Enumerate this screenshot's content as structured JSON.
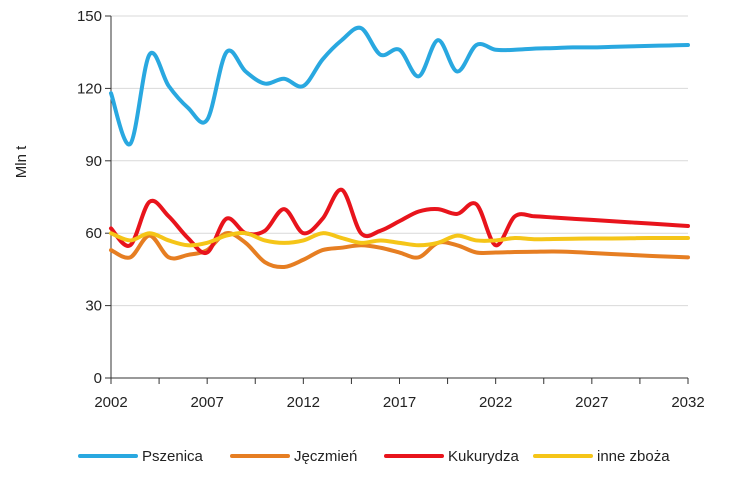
{
  "chart_data": {
    "type": "line",
    "ylabel": "Mln t",
    "xlabel": "",
    "title": "",
    "xlim": [
      2002,
      2032
    ],
    "ylim": [
      0,
      150
    ],
    "x_ticks": [
      2002,
      2007,
      2012,
      2017,
      2022,
      2027,
      2032
    ],
    "y_ticks": [
      0,
      30,
      60,
      90,
      120,
      150
    ],
    "grid": "horizontal",
    "legend_position": "bottom",
    "x": [
      2002,
      2003,
      2004,
      2005,
      2006,
      2007,
      2008,
      2009,
      2010,
      2011,
      2012,
      2013,
      2014,
      2015,
      2016,
      2017,
      2018,
      2019,
      2020,
      2021,
      2022,
      2023,
      2024,
      2025,
      2026,
      2027,
      2028,
      2029,
      2030,
      2031,
      2032
    ],
    "series": [
      {
        "name": "Pszenica",
        "color": "#29a8e0",
        "values": [
          118,
          97,
          134,
          121,
          112,
          107,
          135,
          127,
          122,
          124,
          121,
          132,
          140,
          145,
          134,
          136,
          125,
          140,
          127,
          138,
          136,
          136,
          136.5,
          136.7,
          137,
          137,
          137.2,
          137.4,
          137.6,
          137.8,
          138
        ]
      },
      {
        "name": "Jęczmień",
        "color": "#e67e22",
        "values": [
          53,
          50,
          59,
          50,
          51,
          53,
          60,
          56,
          48,
          46,
          49,
          53,
          54,
          55,
          54,
          52,
          50,
          56,
          55,
          52,
          52,
          52.2,
          52.3,
          52.4,
          52.2,
          51.8,
          51.4,
          51,
          50.6,
          50.3,
          50
        ]
      },
      {
        "name": "Kukurydza",
        "color": "#e8141c",
        "values": [
          62,
          55,
          73,
          67,
          58,
          52,
          66,
          60,
          61,
          70,
          60,
          66,
          78,
          60,
          61,
          65,
          69,
          70,
          68,
          72,
          55,
          67,
          67,
          66.5,
          66,
          65.5,
          65,
          64.5,
          64,
          63.5,
          63
        ]
      },
      {
        "name": "inne zboża",
        "color": "#f5c518",
        "values": [
          60,
          57,
          60,
          57,
          55,
          56,
          59,
          60,
          57,
          56,
          57,
          60,
          58,
          56,
          57,
          56,
          55,
          56,
          59,
          57,
          57,
          58,
          57.5,
          57.6,
          57.7,
          57.8,
          57.8,
          57.9,
          58,
          58,
          58
        ]
      }
    ]
  }
}
